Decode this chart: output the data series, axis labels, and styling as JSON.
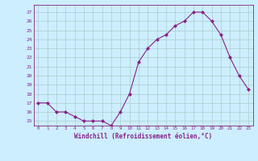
{
  "x": [
    0,
    1,
    2,
    3,
    4,
    5,
    6,
    7,
    8,
    9,
    10,
    11,
    12,
    13,
    14,
    15,
    16,
    17,
    18,
    19,
    20,
    21,
    22,
    23
  ],
  "y": [
    17,
    17,
    16,
    16,
    15.5,
    15,
    15,
    15,
    14.5,
    16,
    18,
    21.5,
    23,
    24,
    24.5,
    25.5,
    26,
    27,
    27,
    26,
    24.5,
    22,
    20,
    18.5
  ],
  "line_color": "#882288",
  "marker": "D",
  "marker_size": 2.0,
  "bg_color": "#cceeff",
  "grid_color": "#aacccc",
  "xlabel": "Windchill (Refroidissement éolien,°C)",
  "xlabel_color": "#882288",
  "ylabel_ticks": [
    15,
    16,
    17,
    18,
    19,
    20,
    21,
    22,
    23,
    24,
    25,
    26,
    27
  ],
  "ylim": [
    14.5,
    27.8
  ],
  "xlim": [
    -0.5,
    23.5
  ]
}
